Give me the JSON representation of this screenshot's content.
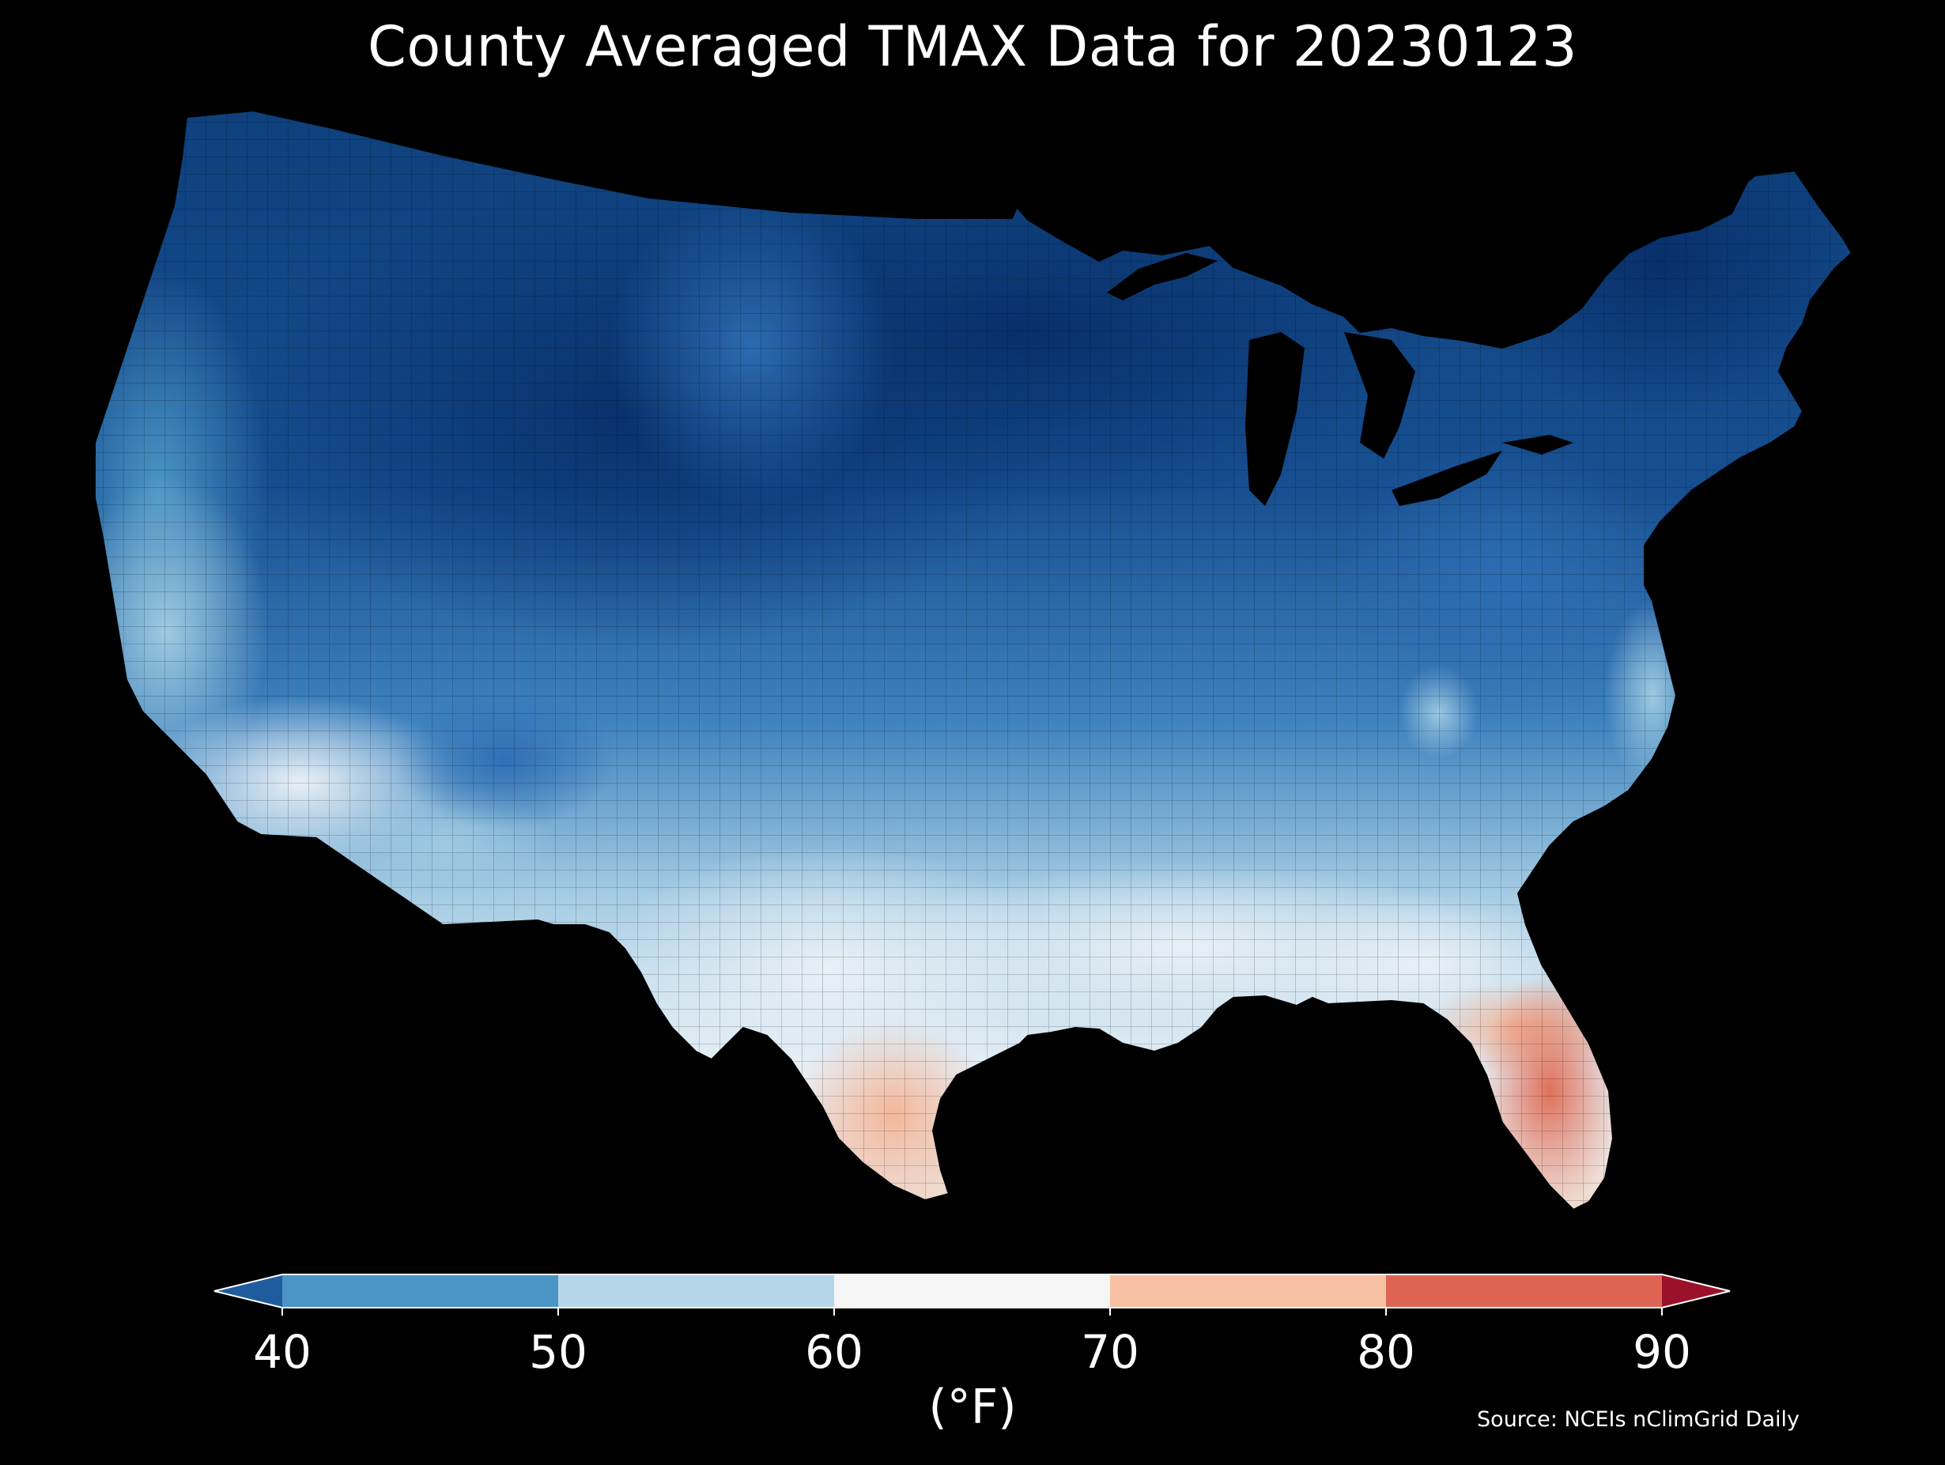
{
  "title": "County Averaged TMAX Data for 20230123",
  "source": "Source: NCEIs nClimGrid Daily",
  "colorbar": {
    "unit_label": "(°F)",
    "ticks": [
      "40",
      "50",
      "60",
      "70",
      "80",
      "90"
    ],
    "bins": [
      {
        "range": "<40",
        "color": "#1f5c9e"
      },
      {
        "range": "40-50",
        "color": "#4a95c5"
      },
      {
        "range": "50-60",
        "color": "#b5d6e9"
      },
      {
        "range": "60-70",
        "color": "#f5f5f5"
      },
      {
        "range": "70-80",
        "color": "#f8c0a2"
      },
      {
        "range": "80-90",
        "color": "#dd6452"
      },
      {
        "range": ">90",
        "color": "#9b1129"
      }
    ]
  },
  "map": {
    "region": "Contiguous United States",
    "projection": "Lambert Conformal",
    "variable": "TMAX",
    "units": "°F",
    "regional_colors": {
      "very_cold_interior": "#08306b",
      "cold_north": "#0d4a8c",
      "cool_blue": "#2d6db3",
      "mid_blue": "#4a95c5",
      "light_blue": "#9ecae1",
      "pale_blue": "#cfe3f0",
      "near_white": "#eef3f7",
      "peach": "#f8c9b0",
      "salmon": "#e9846a",
      "water": "#000000"
    }
  }
}
